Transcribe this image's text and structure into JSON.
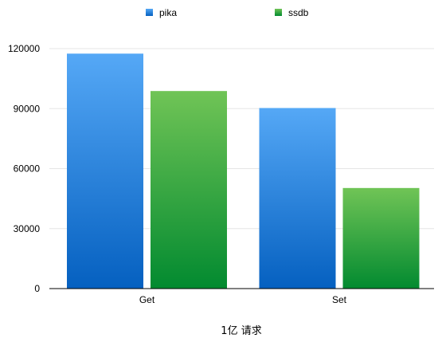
{
  "chart_data": {
    "type": "bar",
    "categories": [
      "Get",
      "Set"
    ],
    "series": [
      {
        "name": "pika",
        "values": [
          117500,
          90300
        ],
        "color": "#1f78d8"
      },
      {
        "name": "ssdb",
        "values": [
          98800,
          50300
        ],
        "color": "#2e9e3c"
      }
    ],
    "xlabel": "1亿 请求",
    "ylabel": "",
    "ylim": [
      0,
      120000
    ],
    "yticks": [
      0,
      30000,
      60000,
      90000,
      120000
    ],
    "grid": true,
    "legend_position": "top"
  }
}
